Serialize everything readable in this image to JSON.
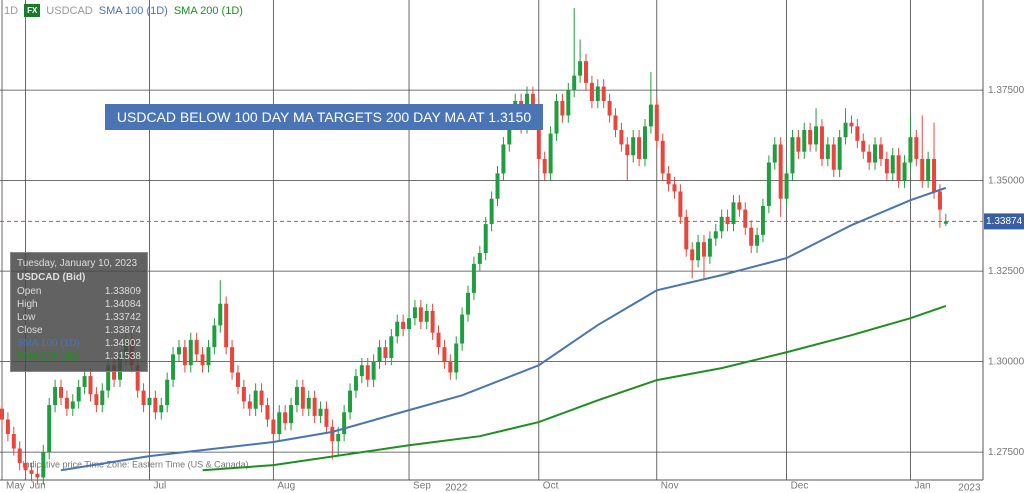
{
  "header": {
    "interval": "1D",
    "badge": "FX",
    "symbol": "USDCAD"
  },
  "chart_data": {
    "type": "candlestick",
    "annotation": "USDCAD BELOW 100 DAY MA TARGETS 200 DAY MA AT 1.3150",
    "footnote": "Indicative price   Time Zone: Eastern Time (US & Canada)",
    "up_color": "#1e9e3e",
    "down_color": "#e8453c",
    "open": [
      1.287,
      1.284,
      1.28,
      1.276,
      1.272,
      1.27,
      1.269,
      1.268,
      1.275,
      1.288,
      1.293,
      1.29,
      1.287,
      1.289,
      1.293,
      1.296,
      1.291,
      1.288,
      1.292,
      1.299,
      1.295,
      1.301,
      1.306,
      1.299,
      1.292,
      1.288,
      1.29,
      1.286,
      1.288,
      1.295,
      1.302,
      1.304,
      1.299,
      1.306,
      1.302,
      1.299,
      1.304,
      1.31,
      1.316,
      1.304,
      1.297,
      1.293,
      1.289,
      1.287,
      1.292,
      1.288,
      1.284,
      1.28,
      1.286,
      1.283,
      1.288,
      1.293,
      1.287,
      1.29,
      1.285,
      1.287,
      1.282,
      1.278,
      1.28,
      1.286,
      1.292,
      1.296,
      1.299,
      1.295,
      1.3,
      1.304,
      1.301,
      1.307,
      1.311,
      1.309,
      1.312,
      1.315,
      1.311,
      1.314,
      1.308,
      1.304,
      1.3,
      1.297,
      1.305,
      1.313,
      1.319,
      1.327,
      1.33,
      1.338,
      1.345,
      1.352,
      1.36,
      1.368,
      1.372,
      1.365,
      1.374,
      1.37,
      1.356,
      1.352,
      1.363,
      1.372,
      1.368,
      1.375,
      1.379,
      1.383,
      1.377,
      1.372,
      1.376,
      1.372,
      1.368,
      1.364,
      1.36,
      1.357,
      1.362,
      1.356,
      1.365,
      1.371,
      1.361,
      1.352,
      1.349,
      1.347,
      1.34,
      1.331,
      1.328,
      1.333,
      1.329,
      1.334,
      1.336,
      1.34,
      1.338,
      1.344,
      1.342,
      1.337,
      1.332,
      1.335,
      1.343,
      1.355,
      1.36,
      1.345,
      1.352,
      1.362,
      1.358,
      1.364,
      1.36,
      1.365,
      1.356,
      1.36,
      1.353,
      1.362,
      1.366,
      1.365,
      1.361,
      1.358,
      1.355,
      1.36,
      1.356,
      1.352,
      1.357,
      1.35,
      1.355,
      1.362,
      1.356,
      1.35,
      1.356,
      1.347,
      1.33809
    ],
    "high": [
      1.289,
      1.286,
      1.282,
      1.278,
      1.274,
      1.272,
      1.271,
      1.277,
      1.29,
      1.295,
      1.295,
      1.292,
      1.291,
      1.295,
      1.298,
      1.298,
      1.293,
      1.294,
      1.301,
      1.301,
      1.303,
      1.308,
      1.308,
      1.301,
      1.294,
      1.292,
      1.292,
      1.29,
      1.297,
      1.304,
      1.306,
      1.306,
      1.308,
      1.308,
      1.304,
      1.306,
      1.312,
      1.3225,
      1.318,
      1.306,
      1.299,
      1.295,
      1.291,
      1.294,
      1.294,
      1.29,
      1.286,
      1.288,
      1.288,
      1.29,
      1.295,
      1.295,
      1.292,
      1.292,
      1.289,
      1.289,
      1.284,
      1.282,
      1.288,
      1.294,
      1.298,
      1.301,
      1.301,
      1.302,
      1.306,
      1.306,
      1.309,
      1.313,
      1.313,
      1.314,
      1.317,
      1.317,
      1.316,
      1.316,
      1.31,
      1.306,
      1.302,
      1.307,
      1.315,
      1.321,
      1.329,
      1.332,
      1.34,
      1.347,
      1.354,
      1.362,
      1.37,
      1.374,
      1.374,
      1.376,
      1.376,
      1.372,
      1.358,
      1.365,
      1.374,
      1.374,
      1.377,
      1.3977,
      1.389,
      1.385,
      1.379,
      1.378,
      1.378,
      1.374,
      1.37,
      1.366,
      1.362,
      1.364,
      1.364,
      1.367,
      1.38,
      1.373,
      1.363,
      1.354,
      1.351,
      1.349,
      1.342,
      1.333,
      1.335,
      1.335,
      1.336,
      1.338,
      1.342,
      1.342,
      1.346,
      1.346,
      1.344,
      1.339,
      1.337,
      1.345,
      1.357,
      1.362,
      1.362,
      1.354,
      1.364,
      1.364,
      1.366,
      1.366,
      1.37,
      1.367,
      1.362,
      1.362,
      1.364,
      1.37,
      1.368,
      1.367,
      1.363,
      1.36,
      1.362,
      1.362,
      1.358,
      1.359,
      1.359,
      1.357,
      1.368,
      1.364,
      1.368,
      1.358,
      1.366,
      1.349,
      1.34084
    ],
    "low": [
      1.282,
      1.278,
      1.274,
      1.27,
      1.268,
      1.267,
      1.266,
      1.266,
      1.273,
      1.286,
      1.288,
      1.285,
      1.285,
      1.287,
      1.291,
      1.289,
      1.286,
      1.286,
      1.29,
      1.293,
      1.293,
      1.299,
      1.297,
      1.29,
      1.286,
      1.286,
      1.284,
      1.284,
      1.286,
      1.293,
      1.3,
      1.297,
      1.297,
      1.3,
      1.297,
      1.297,
      1.302,
      1.308,
      1.302,
      1.295,
      1.291,
      1.287,
      1.285,
      1.285,
      1.286,
      1.282,
      1.278,
      1.278,
      1.281,
      1.281,
      1.286,
      1.285,
      1.285,
      1.283,
      1.283,
      1.28,
      1.273,
      1.274,
      1.278,
      1.284,
      1.29,
      1.294,
      1.293,
      1.293,
      1.298,
      1.299,
      1.299,
      1.305,
      1.307,
      1.307,
      1.31,
      1.309,
      1.309,
      1.306,
      1.302,
      1.298,
      1.295,
      1.295,
      1.303,
      1.311,
      1.317,
      1.325,
      1.328,
      1.336,
      1.343,
      1.35,
      1.358,
      1.366,
      1.363,
      1.363,
      1.368,
      1.354,
      1.35,
      1.35,
      1.361,
      1.366,
      1.366,
      1.373,
      1.377,
      1.375,
      1.37,
      1.37,
      1.37,
      1.366,
      1.362,
      1.358,
      1.35,
      1.355,
      1.354,
      1.354,
      1.363,
      1.359,
      1.35,
      1.347,
      1.345,
      1.338,
      1.329,
      1.323,
      1.326,
      1.323,
      1.327,
      1.332,
      1.334,
      1.336,
      1.336,
      1.34,
      1.335,
      1.33,
      1.33,
      1.333,
      1.341,
      1.353,
      1.34,
      1.343,
      1.35,
      1.356,
      1.356,
      1.358,
      1.358,
      1.354,
      1.354,
      1.351,
      1.351,
      1.36,
      1.363,
      1.359,
      1.356,
      1.353,
      1.353,
      1.354,
      1.35,
      1.35,
      1.348,
      1.348,
      1.353,
      1.354,
      1.348,
      1.348,
      1.345,
      1.337,
      1.33742
    ],
    "close": [
      1.284,
      1.28,
      1.276,
      1.272,
      1.27,
      1.269,
      1.268,
      1.275,
      1.288,
      1.293,
      1.29,
      1.287,
      1.289,
      1.293,
      1.296,
      1.291,
      1.288,
      1.292,
      1.299,
      1.295,
      1.301,
      1.306,
      1.299,
      1.292,
      1.288,
      1.29,
      1.286,
      1.288,
      1.295,
      1.302,
      1.304,
      1.299,
      1.306,
      1.302,
      1.299,
      1.304,
      1.31,
      1.316,
      1.304,
      1.297,
      1.293,
      1.289,
      1.287,
      1.292,
      1.288,
      1.284,
      1.28,
      1.286,
      1.283,
      1.288,
      1.293,
      1.287,
      1.29,
      1.285,
      1.287,
      1.282,
      1.278,
      1.28,
      1.286,
      1.292,
      1.296,
      1.299,
      1.295,
      1.3,
      1.304,
      1.301,
      1.307,
      1.311,
      1.309,
      1.312,
      1.315,
      1.311,
      1.314,
      1.308,
      1.304,
      1.3,
      1.297,
      1.305,
      1.313,
      1.319,
      1.327,
      1.33,
      1.338,
      1.345,
      1.352,
      1.36,
      1.368,
      1.372,
      1.365,
      1.374,
      1.37,
      1.356,
      1.352,
      1.363,
      1.372,
      1.368,
      1.375,
      1.379,
      1.383,
      1.377,
      1.372,
      1.376,
      1.372,
      1.368,
      1.364,
      1.36,
      1.357,
      1.362,
      1.356,
      1.365,
      1.371,
      1.361,
      1.352,
      1.349,
      1.347,
      1.34,
      1.331,
      1.328,
      1.333,
      1.329,
      1.334,
      1.336,
      1.34,
      1.338,
      1.344,
      1.342,
      1.337,
      1.332,
      1.335,
      1.343,
      1.355,
      1.36,
      1.345,
      1.352,
      1.362,
      1.358,
      1.364,
      1.36,
      1.365,
      1.356,
      1.36,
      1.353,
      1.362,
      1.366,
      1.365,
      1.361,
      1.358,
      1.355,
      1.36,
      1.356,
      1.352,
      1.357,
      1.35,
      1.355,
      1.362,
      1.356,
      1.35,
      1.356,
      1.347,
      1.342,
      1.33874
    ],
    "series": [
      {
        "name": "SMA 100 (1D)",
        "color": "#4a74b4",
        "x": [
          10,
          25,
          46,
          56,
          69,
          78,
          91,
          101,
          111,
          122,
          133,
          144,
          154,
          160
        ],
        "values": [
          1.27,
          1.2739,
          1.2778,
          1.2806,
          1.2866,
          1.2907,
          1.299,
          1.3101,
          1.3197,
          1.3239,
          1.3286,
          1.3377,
          1.3446,
          1.348
        ]
      },
      {
        "name": "SMA 200 (1D)",
        "color": "#1f8f1f",
        "x": [
          34,
          46,
          69,
          81,
          91,
          101,
          111,
          122,
          133,
          144,
          154,
          160
        ],
        "values": [
          1.27,
          1.2714,
          1.2769,
          1.2794,
          1.2833,
          1.2893,
          1.2949,
          1.2982,
          1.3026,
          1.3073,
          1.312,
          1.3154
        ]
      }
    ],
    "xlim": [
      -0.34,
      166.3
    ],
    "xticks": [
      {
        "value": 0,
        "label": "May"
      },
      {
        "value": 4,
        "label": "Jun"
      },
      {
        "value": 25,
        "label": "Jul"
      },
      {
        "value": 46,
        "label": "Aug"
      },
      {
        "value": 69,
        "label": "Sep"
      },
      {
        "value": 91,
        "label": "Oct"
      },
      {
        "value": 111,
        "label": "Nov"
      },
      {
        "value": 133,
        "label": "Dec"
      },
      {
        "value": 154,
        "label": "Jan"
      }
    ],
    "year_labels": [
      {
        "value": 77,
        "label": "2022"
      },
      {
        "value": 164,
        "label": "2023"
      }
    ],
    "ylim": [
      1.2673,
      1.3999
    ],
    "yticks": [
      {
        "value": 1.275,
        "label": "1.27500"
      },
      {
        "value": 1.3,
        "label": "1.30000"
      },
      {
        "value": 1.325,
        "label": "1.32500"
      },
      {
        "value": 1.35,
        "label": "1.35000"
      },
      {
        "value": 1.375,
        "label": "1.37500"
      }
    ],
    "grid": true,
    "last_price": {
      "value": 1.33874,
      "label": "1.33874"
    }
  },
  "tooltip": {
    "date": "Tuesday, January 10, 2023",
    "symbol": "USDCAD (Bid)",
    "rows": [
      [
        "Open",
        1.33809
      ],
      [
        "High",
        1.34084
      ],
      [
        "Low",
        1.33742
      ],
      [
        "Close",
        1.33874
      ],
      [
        "SMA 100 (1D)",
        1.34802
      ],
      [
        "SMA 200 (1D)",
        1.31538
      ]
    ]
  }
}
